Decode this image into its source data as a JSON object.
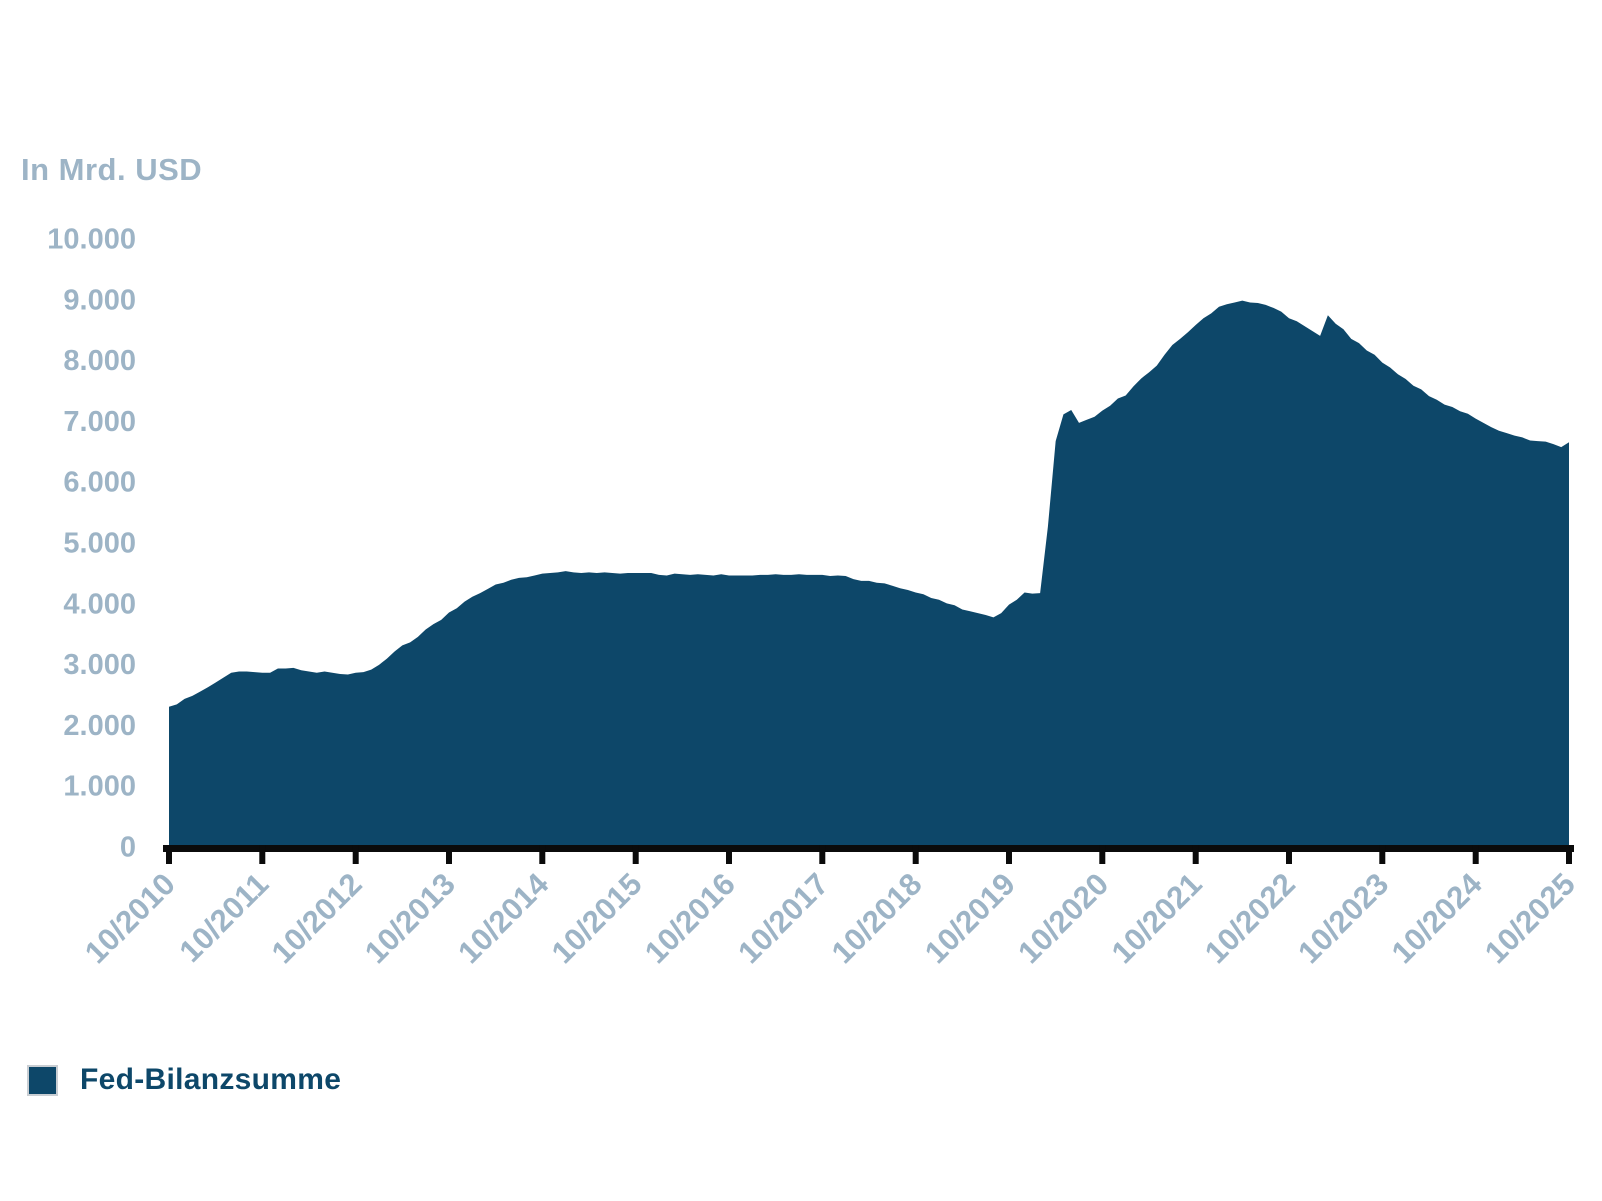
{
  "chart_data": {
    "type": "area",
    "unit_label": "In Mrd. USD",
    "title": "",
    "xlabel": "",
    "ylabel": "In Mrd. USD",
    "ylim": [
      0,
      10000
    ],
    "grid": false,
    "x_start": "10/2010",
    "x_end": "10/2025",
    "interval": "monthly",
    "x_tick_labels": [
      "10/2010",
      "10/2011",
      "10/2012",
      "10/2013",
      "10/2014",
      "10/2015",
      "10/2016",
      "10/2017",
      "10/2018",
      "10/2019",
      "10/2020",
      "10/2021",
      "10/2022",
      "10/2023",
      "10/2024",
      "10/2025"
    ],
    "y_ticks": [
      0,
      1000,
      2000,
      3000,
      4000,
      5000,
      6000,
      7000,
      8000,
      9000,
      10000
    ],
    "y_tick_labels": [
      "0",
      "1.000",
      "2.000",
      "3.000",
      "4.000",
      "5.000",
      "6.000",
      "7.000",
      "8.000",
      "9.000",
      "10.000"
    ],
    "series": [
      {
        "name": "Fed-Bilanzsumme",
        "color": "#0d4769",
        "values": [
          2290,
          2330,
          2420,
          2470,
          2540,
          2610,
          2690,
          2770,
          2850,
          2870,
          2870,
          2860,
          2850,
          2850,
          2920,
          2920,
          2930,
          2890,
          2870,
          2850,
          2870,
          2850,
          2830,
          2820,
          2850,
          2860,
          2900,
          2980,
          3080,
          3200,
          3300,
          3350,
          3440,
          3560,
          3650,
          3720,
          3840,
          3910,
          4020,
          4100,
          4160,
          4230,
          4300,
          4330,
          4380,
          4410,
          4420,
          4450,
          4480,
          4490,
          4500,
          4520,
          4500,
          4490,
          4500,
          4490,
          4500,
          4490,
          4480,
          4490,
          4490,
          4490,
          4490,
          4460,
          4450,
          4480,
          4470,
          4460,
          4470,
          4460,
          4450,
          4470,
          4450,
          4450,
          4450,
          4450,
          4460,
          4460,
          4470,
          4460,
          4460,
          4470,
          4460,
          4460,
          4460,
          4440,
          4450,
          4440,
          4390,
          4360,
          4360,
          4330,
          4320,
          4280,
          4240,
          4210,
          4170,
          4140,
          4080,
          4050,
          3990,
          3960,
          3890,
          3860,
          3830,
          3800,
          3760,
          3830,
          3970,
          4050,
          4170,
          4150,
          4160,
          5250,
          6660,
          7100,
          7170,
          6960,
          7010,
          7060,
          7160,
          7240,
          7360,
          7410,
          7560,
          7690,
          7790,
          7900,
          8080,
          8240,
          8340,
          8450,
          8570,
          8680,
          8760,
          8870,
          8910,
          8940,
          8970,
          8940,
          8930,
          8900,
          8850,
          8790,
          8680,
          8630,
          8550,
          8470,
          8390,
          8730,
          8590,
          8500,
          8340,
          8270,
          8150,
          8080,
          7950,
          7870,
          7760,
          7680,
          7570,
          7510,
          7400,
          7340,
          7260,
          7220,
          7150,
          7110,
          7030,
          6960,
          6890,
          6830,
          6790,
          6750,
          6720,
          6670,
          6660,
          6650,
          6610,
          6560,
          6640
        ]
      }
    ],
    "legend": {
      "label": "Fed-Bilanzsumme",
      "position": "bottom-left"
    },
    "colors": {
      "area": "#0d4769",
      "axis": "#0b0b0b",
      "tick_label": "#9db4c6",
      "legend_text": "#0d4769",
      "legend_swatch_border": "#c9ced3",
      "background": "#ffffff"
    }
  }
}
